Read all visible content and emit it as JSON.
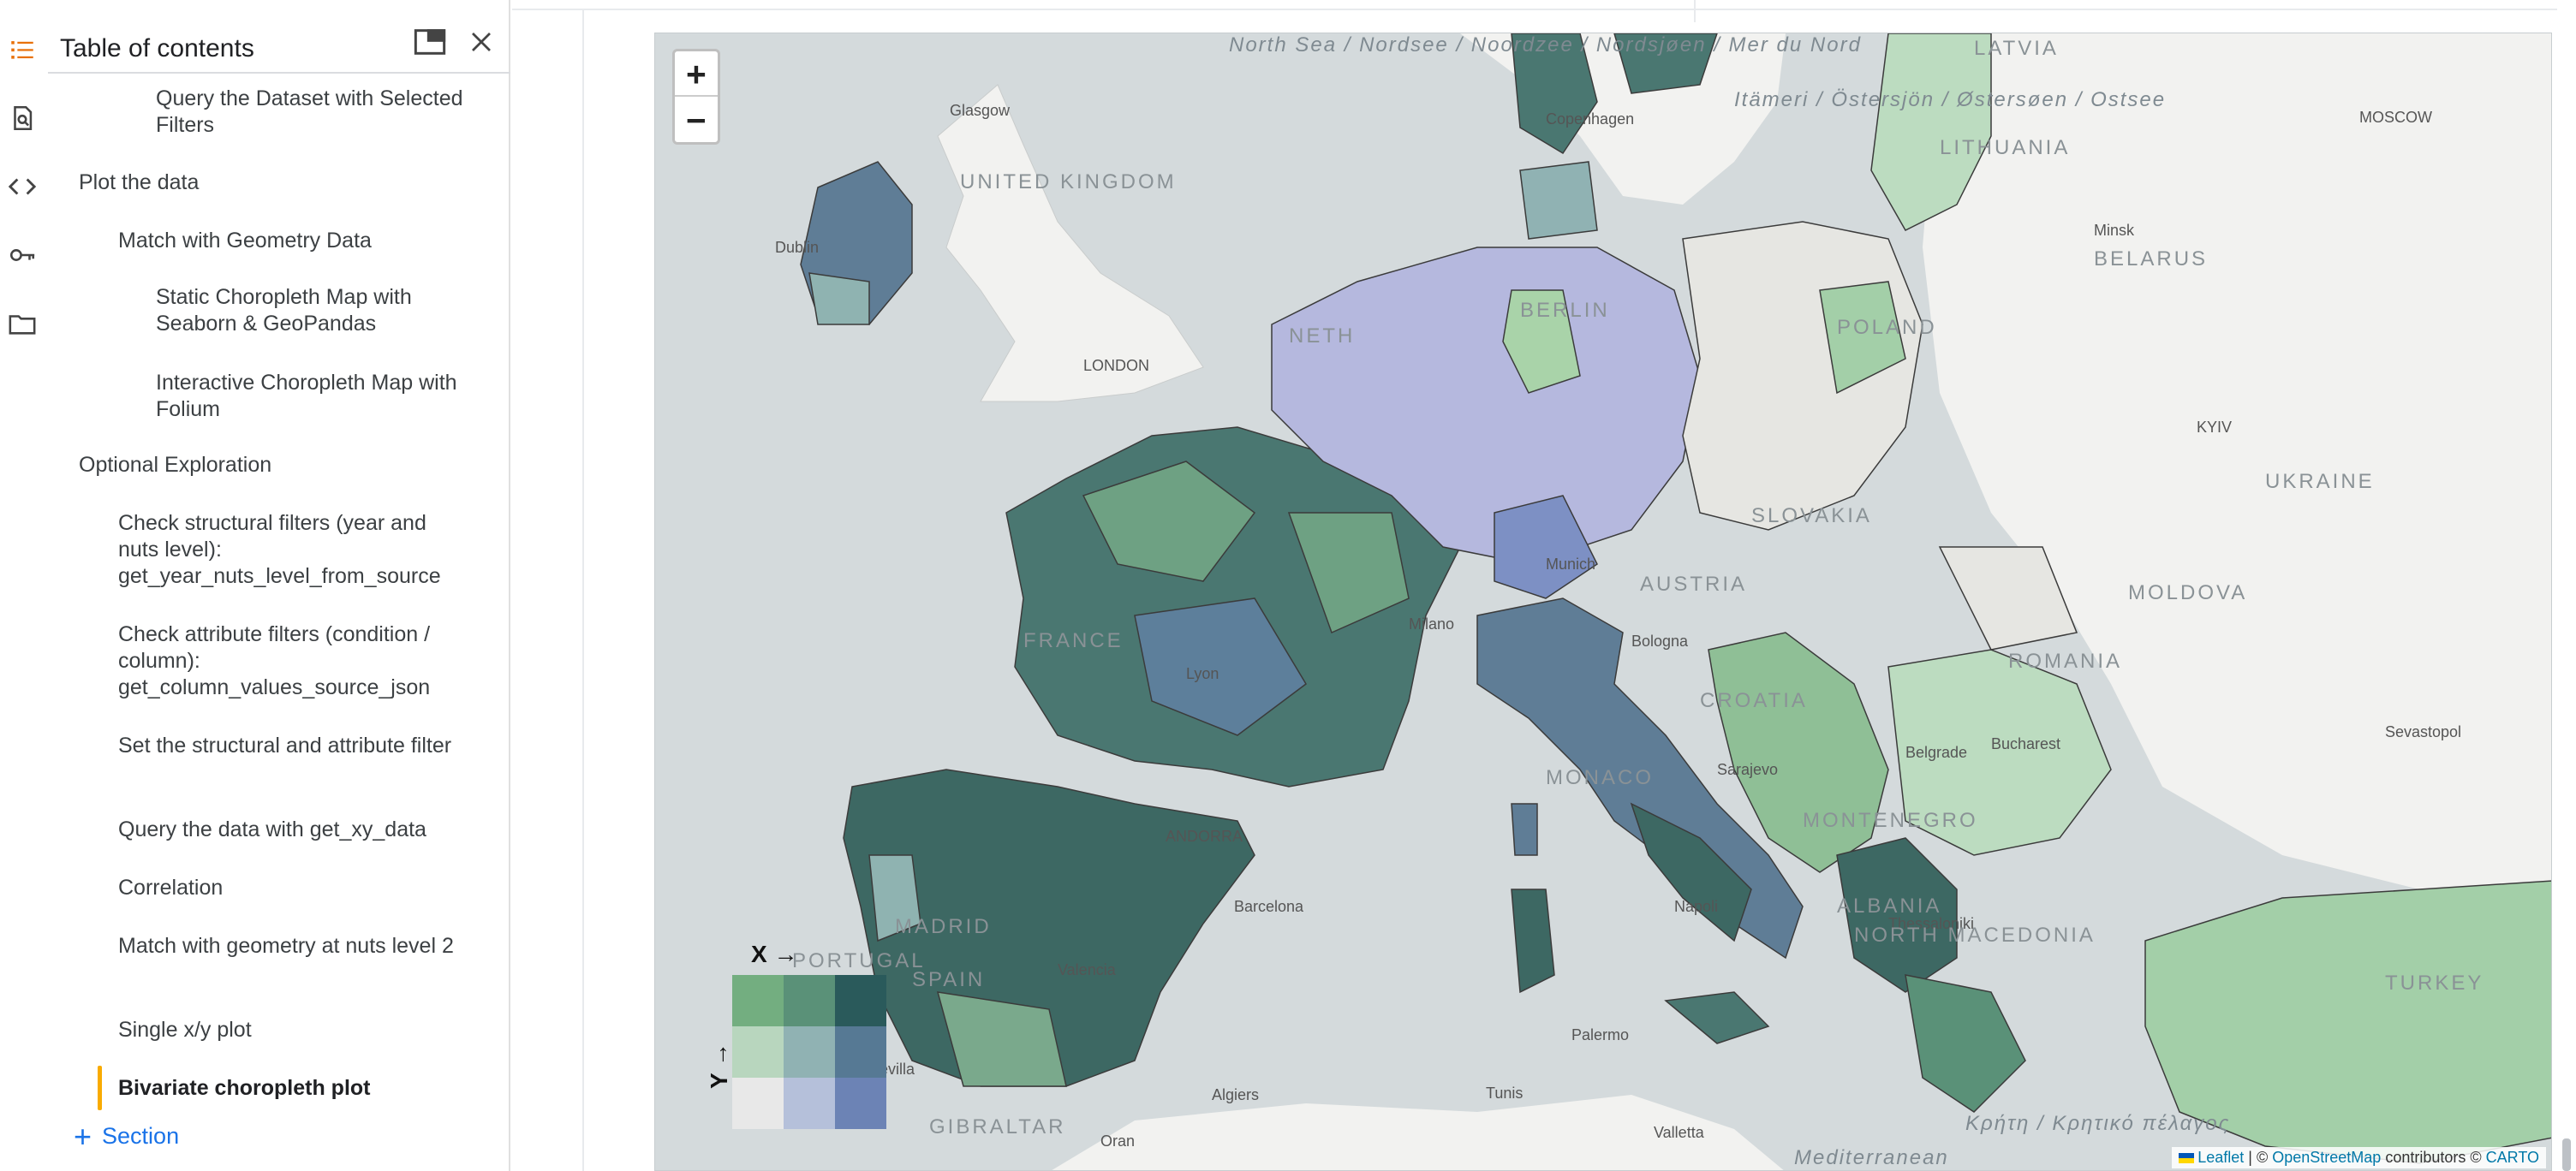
{
  "toc": {
    "title": "Table of contents",
    "items": [
      {
        "label": "Query the Dataset with Selected Filters",
        "level": 3
      },
      {
        "label": "Plot the data",
        "level": 1
      },
      {
        "label": "Match with Geometry Data",
        "level": 2
      },
      {
        "label": "Static Choropleth Map with Seaborn & GeoPandas",
        "level": 3
      },
      {
        "label": "Interactive Choropleth Map with Folium",
        "level": 3
      },
      {
        "label": "Optional Exploration",
        "level": 1
      },
      {
        "label": "Check structural filters (year and nuts level): get_year_nuts_level_from_source",
        "level": 2
      },
      {
        "label": "Check attribute filters (condition / column): get_column_values_source_json",
        "level": 2
      },
      {
        "label": "Set the structural and attribute filter",
        "level": 2
      },
      {
        "label": "Query the data with get_xy_data",
        "level": 2
      },
      {
        "label": "Correlation",
        "level": 2
      },
      {
        "label": "Match with geometry at nuts level 2",
        "level": 2
      },
      {
        "label": "Single x/y plot",
        "level": 2
      },
      {
        "label": "Bivariate choropleth plot",
        "level": 2,
        "active": true
      }
    ],
    "add_section": "Section"
  },
  "rail": {
    "icons": [
      "toc-icon",
      "find-icon",
      "code-icon",
      "key-icon",
      "folder-icon"
    ],
    "accent": "#e8710a"
  },
  "map": {
    "zoom_in": "+",
    "zoom_out": "−",
    "labels": {
      "north_sea": "North Sea / Nordsee / Noordzee / Nordsjøen / Mer du Nord",
      "uk": "UNITED KINGDOM",
      "london": "LONDON",
      "glasgow": "Glasgow",
      "dublin": "Dublin",
      "latvia": "LATVIA",
      "lithuania": "LITHUANIA",
      "moscow": "MOSCOW",
      "minsk": "Minsk",
      "belarus": "BELARUS",
      "kyiv": "KYIV",
      "ukraine": "UKRAINE",
      "moldova": "MOLDOVA",
      "romania": "ROMANIA",
      "sevastopol": "Sevastopol",
      "bucharest": "Bucharest",
      "baltic": "Itämeri / Östersjön / Østersøen / Ostsee",
      "copenhagen": "Copenhagen",
      "berlin": "BERLIN",
      "netherlands": "NETH",
      "france": "FRANCE",
      "lyon": "Lyon",
      "monaco": "MONACO",
      "croatia": "CROATIA",
      "sarajevo": "Sarajevo",
      "belgrade": "Belgrade",
      "montenegro": "MONTENEGRO",
      "albania": "ALBANIA",
      "north_macedonia": "NORTH MACEDONIA",
      "thessaloniki": "Thessaloniki",
      "turkey": "TURKEY",
      "kriti": "Κρήτη / Κρητικό πέλαγος",
      "portugal": "PORTUGAL",
      "spain": "SPAIN",
      "madrid": "MADRID",
      "valencia": "Valencia",
      "barcelona": "Barcelona",
      "andorra": "ANDORRA",
      "sevilla": "Sevilla",
      "gibraltar": "GIBRALTAR",
      "napoli": "Napoli",
      "palermo": "Palermo",
      "tunis": "Tunis",
      "algiers": "Algiers",
      "oran": "Oran",
      "valletta": "Valletta",
      "mediterranean": "Mediterranean",
      "poland": "POLAND",
      "slovakia": "SLOVAKIA",
      "austria": "AUSTRIA",
      "munich": "Munich",
      "milano": "Milano",
      "bologna": "Bologna"
    },
    "legend": {
      "x_label": "X →",
      "y_label": "Y →",
      "colors": [
        "#73ae80",
        "#5a9178",
        "#2a5a5b",
        "#b8d6be",
        "#90b2b3",
        "#567994",
        "#e8e8e8",
        "#b5c0da",
        "#6c83b5"
      ]
    },
    "attribution": {
      "leaflet": "Leaflet",
      "sep1": " | © ",
      "osm": "OpenStreetMap",
      "contrib": " contributors © ",
      "carto": "CARTO"
    },
    "colors": {
      "sea": "#d4dadc",
      "land": "#f2f2f0",
      "outline": "#3b3b3b"
    }
  }
}
